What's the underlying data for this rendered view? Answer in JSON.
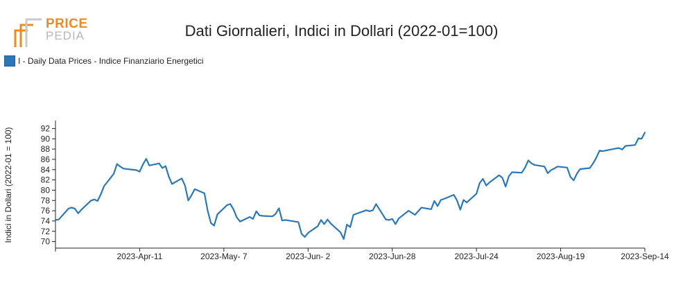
{
  "logo": {
    "line1": "PRICE",
    "line2": "PEDIA"
  },
  "title": "Dati Giornalieri, Indici in Dollari (2022-01=100)",
  "colors": {
    "series": "#2a78b8",
    "logo_orange": "#ef8a1c",
    "logo_gray": "#b7b7b7"
  },
  "chart_data": {
    "type": "line",
    "ylabel": "Indici in Dollari (2022-01 = 100)",
    "xlabel": "",
    "ylim": [
      69,
      93
    ],
    "yticks": [
      70,
      72,
      74,
      76,
      78,
      80,
      82,
      84,
      86,
      88,
      90,
      92
    ],
    "xticks": [
      "2023-Apr-11",
      "2023-May- 7",
      "2023-Jun- 2",
      "2023-Jun-28",
      "2023-Jul-24",
      "2023-Aug-19",
      "2023-Sep-14"
    ],
    "xlim": [
      "2023-Mar-16",
      "2023-Sep-14"
    ],
    "grid": false,
    "legend_position": "top-left",
    "series": [
      {
        "name": "I - Daily Data Prices - Indice Finanziario Energetici",
        "x": [
          "2023-Mar-16",
          "2023-Mar-17",
          "2023-Mar-20",
          "2023-Mar-21",
          "2023-Mar-22",
          "2023-Mar-23",
          "2023-Mar-24",
          "2023-Mar-27",
          "2023-Mar-28",
          "2023-Mar-29",
          "2023-Mar-30",
          "2023-Mar-31",
          "2023-Apr-03",
          "2023-Apr-04",
          "2023-Apr-05",
          "2023-Apr-06",
          "2023-Apr-10",
          "2023-Apr-11",
          "2023-Apr-12",
          "2023-Apr-13",
          "2023-Apr-14",
          "2023-Apr-17",
          "2023-Apr-18",
          "2023-Apr-19",
          "2023-Apr-20",
          "2023-Apr-21",
          "2023-Apr-24",
          "2023-Apr-25",
          "2023-Apr-26",
          "2023-Apr-27",
          "2023-Apr-28",
          "2023-May-01",
          "2023-May-02",
          "2023-May-03",
          "2023-May-04",
          "2023-May-05",
          "2023-May-08",
          "2023-May-09",
          "2023-May-10",
          "2023-May-11",
          "2023-May-12",
          "2023-May-15",
          "2023-May-16",
          "2023-May-17",
          "2023-May-18",
          "2023-May-19",
          "2023-May-22",
          "2023-May-23",
          "2023-May-24",
          "2023-May-25",
          "2023-May-26",
          "2023-May-30",
          "2023-May-31",
          "2023-Jun-01",
          "2023-Jun-02",
          "2023-Jun-05",
          "2023-Jun-06",
          "2023-Jun-07",
          "2023-Jun-08",
          "2023-Jun-09",
          "2023-Jun-12",
          "2023-Jun-13",
          "2023-Jun-14",
          "2023-Jun-15",
          "2023-Jun-16",
          "2023-Jun-20",
          "2023-Jun-21",
          "2023-Jun-22",
          "2023-Jun-23",
          "2023-Jun-26",
          "2023-Jun-27",
          "2023-Jun-28",
          "2023-Jun-29",
          "2023-Jun-30",
          "2023-Jul-03",
          "2023-Jul-05",
          "2023-Jul-06",
          "2023-Jul-07",
          "2023-Jul-10",
          "2023-Jul-11",
          "2023-Jul-12",
          "2023-Jul-13",
          "2023-Jul-14",
          "2023-Jul-17",
          "2023-Jul-18",
          "2023-Jul-19",
          "2023-Jul-20",
          "2023-Jul-21",
          "2023-Jul-24",
          "2023-Jul-25",
          "2023-Jul-26",
          "2023-Jul-27",
          "2023-Jul-28",
          "2023-Jul-31",
          "2023-Aug-01",
          "2023-Aug-02",
          "2023-Aug-03",
          "2023-Aug-04",
          "2023-Aug-07",
          "2023-Aug-08",
          "2023-Aug-09",
          "2023-Aug-10",
          "2023-Aug-11",
          "2023-Aug-14",
          "2023-Aug-15",
          "2023-Aug-16",
          "2023-Aug-17",
          "2023-Aug-18",
          "2023-Aug-21",
          "2023-Aug-22",
          "2023-Aug-23",
          "2023-Aug-24",
          "2023-Aug-25",
          "2023-Aug-28",
          "2023-Aug-29",
          "2023-Aug-30",
          "2023-Aug-31",
          "2023-Sep-01",
          "2023-Sep-05",
          "2023-Sep-06",
          "2023-Sep-07",
          "2023-Sep-08",
          "2023-Sep-11",
          "2023-Sep-12",
          "2023-Sep-13",
          "2023-Sep-14"
        ],
        "values": [
          74.2,
          74.3,
          76.4,
          76.6,
          76.4,
          75.5,
          76.2,
          78.0,
          78.2,
          77.9,
          79.2,
          80.8,
          83.2,
          85.1,
          84.6,
          84.2,
          83.9,
          83.6,
          85.0,
          86.1,
          84.8,
          85.2,
          84.3,
          84.7,
          82.6,
          81.2,
          82.3,
          80.9,
          78.0,
          79.0,
          80.2,
          79.4,
          76.0,
          73.6,
          73.1,
          75.3,
          77.1,
          77.3,
          76.2,
          74.7,
          73.9,
          74.8,
          74.4,
          75.9,
          75.1,
          75.0,
          74.9,
          75.4,
          76.5,
          74.1,
          74.2,
          73.8,
          71.5,
          70.9,
          71.7,
          73.0,
          74.2,
          73.4,
          74.3,
          73.5,
          71.8,
          70.5,
          73.3,
          72.8,
          75.2,
          76.1,
          75.9,
          76.1,
          77.3,
          74.3,
          74.2,
          74.4,
          73.4,
          74.5,
          76.0,
          75.2,
          75.9,
          76.6,
          76.3,
          77.9,
          76.9,
          78.1,
          78.3,
          79.1,
          78.0,
          76.2,
          78.1,
          77.6,
          79.3,
          81.4,
          82.2,
          80.9,
          81.5,
          82.9,
          82.4,
          80.7,
          82.7,
          83.5,
          83.4,
          84.4,
          85.8,
          85.2,
          84.9,
          84.6,
          83.3,
          83.9,
          84.2,
          84.6,
          84.4,
          82.6,
          81.9,
          83.2,
          84.1,
          84.3,
          85.2,
          86.3,
          87.7,
          87.6,
          88.1,
          88.2,
          87.9,
          88.6,
          88.8,
          90.1,
          90.0,
          91.2
        ]
      }
    ]
  }
}
